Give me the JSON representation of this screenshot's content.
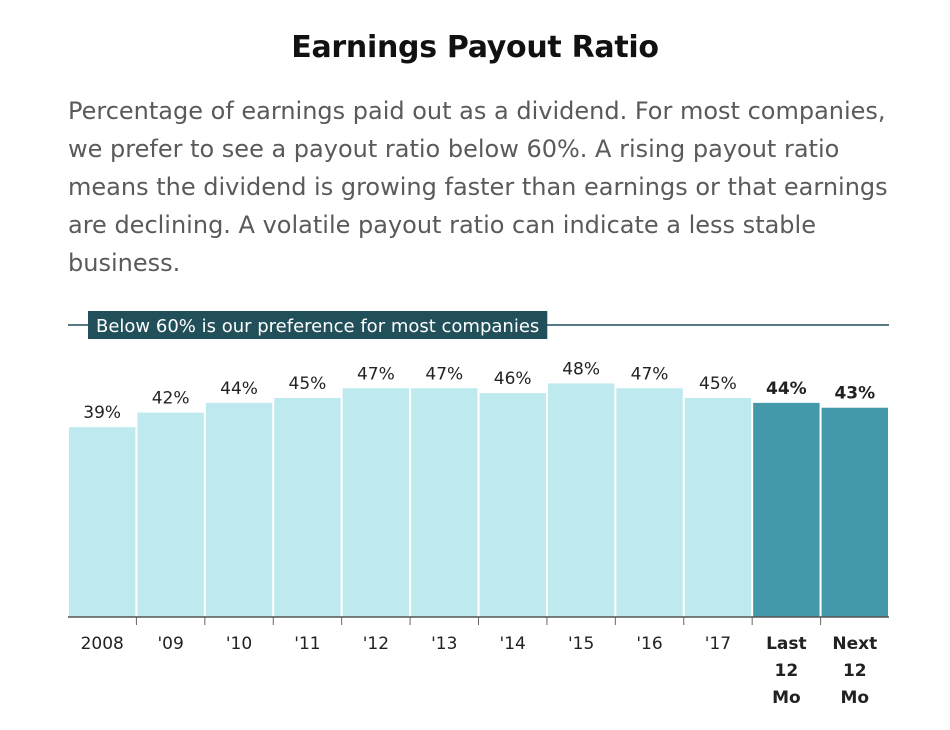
{
  "title": "Earnings Payout Ratio",
  "description": "Percentage of earnings paid out as a dividend. For most companies, we prefer to see a payout ratio below 60%. A rising payout ratio means the dividend is growing faster than earnings or that earnings are declining. A volatile payout ratio can indicate a less stable business.",
  "colors": {
    "historical_bar": "#bde9ef",
    "highlight_bar": "#4398a9",
    "reference_line": "#214f5a",
    "reference_label_bg": "#214f5a",
    "text_dark": "#222222"
  },
  "chart_data": {
    "type": "bar",
    "categories": [
      "2008",
      "'09",
      "'10",
      "'11",
      "'12",
      "'13",
      "'14",
      "'15",
      "'16",
      "'17",
      "Last 12 Mo",
      "Next 12 Mo"
    ],
    "values": [
      39,
      42,
      44,
      45,
      47,
      47,
      46,
      48,
      47,
      45,
      44,
      43
    ],
    "data_labels": [
      "39%",
      "42%",
      "44%",
      "45%",
      "47%",
      "47%",
      "46%",
      "48%",
      "47%",
      "45%",
      "44%",
      "43%"
    ],
    "highlighted": [
      false,
      false,
      false,
      false,
      false,
      false,
      false,
      false,
      false,
      false,
      true,
      true
    ],
    "reference_line": {
      "value": 60,
      "label": "Below 60% is our preference for most companies"
    },
    "ylim": [
      0,
      60
    ],
    "title": "",
    "xlabel": "",
    "ylabel": "",
    "grid": false
  }
}
